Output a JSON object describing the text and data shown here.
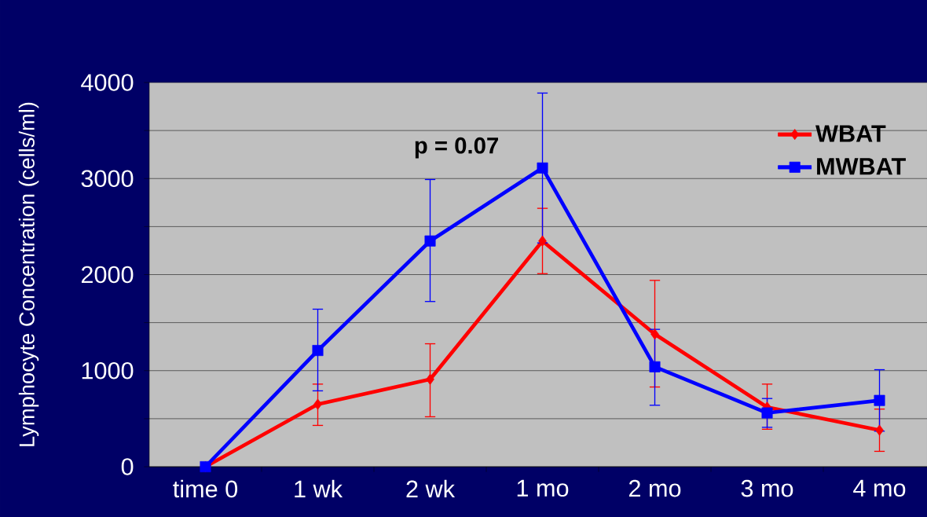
{
  "chart_data": {
    "type": "line",
    "ylabel": "Lymphocyte Concentration (cells/ml)",
    "categories": [
      "time 0",
      "1 wk",
      "2 wk",
      "1 mo",
      "2 mo",
      "3 mo",
      "4 mo"
    ],
    "series": [
      {
        "name": "WBAT",
        "color": "#ff0000",
        "marker": "diamond",
        "values": [
          0,
          650,
          910,
          2350,
          1380,
          620,
          380
        ],
        "errors": [
          null,
          [
            430,
            860
          ],
          [
            520,
            1280
          ],
          [
            2010,
            2690
          ],
          [
            830,
            1940
          ],
          [
            390,
            860
          ],
          [
            160,
            600
          ]
        ]
      },
      {
        "name": "MWBAT",
        "color": "#0000ff",
        "marker": "square",
        "values": [
          0,
          1210,
          2350,
          3110,
          1040,
          560,
          690
        ],
        "errors": [
          null,
          [
            790,
            1640
          ],
          [
            1720,
            2990
          ],
          [
            2330,
            3890
          ],
          [
            640,
            1430
          ],
          [
            410,
            710
          ],
          [
            370,
            1010
          ]
        ]
      }
    ],
    "ylim": [
      0,
      4000
    ],
    "yticks": [
      0,
      {
        "value": 500,
        "label": null
      },
      1000,
      {
        "value": 1500,
        "label": null
      },
      2000,
      {
        "value": 2500,
        "label": null
      },
      3000,
      {
        "value": 3500,
        "label": null
      },
      4000
    ],
    "grid": "y",
    "legend": "top right",
    "line_style": "solid",
    "annotations": [
      "p = 0.07"
    ]
  }
}
